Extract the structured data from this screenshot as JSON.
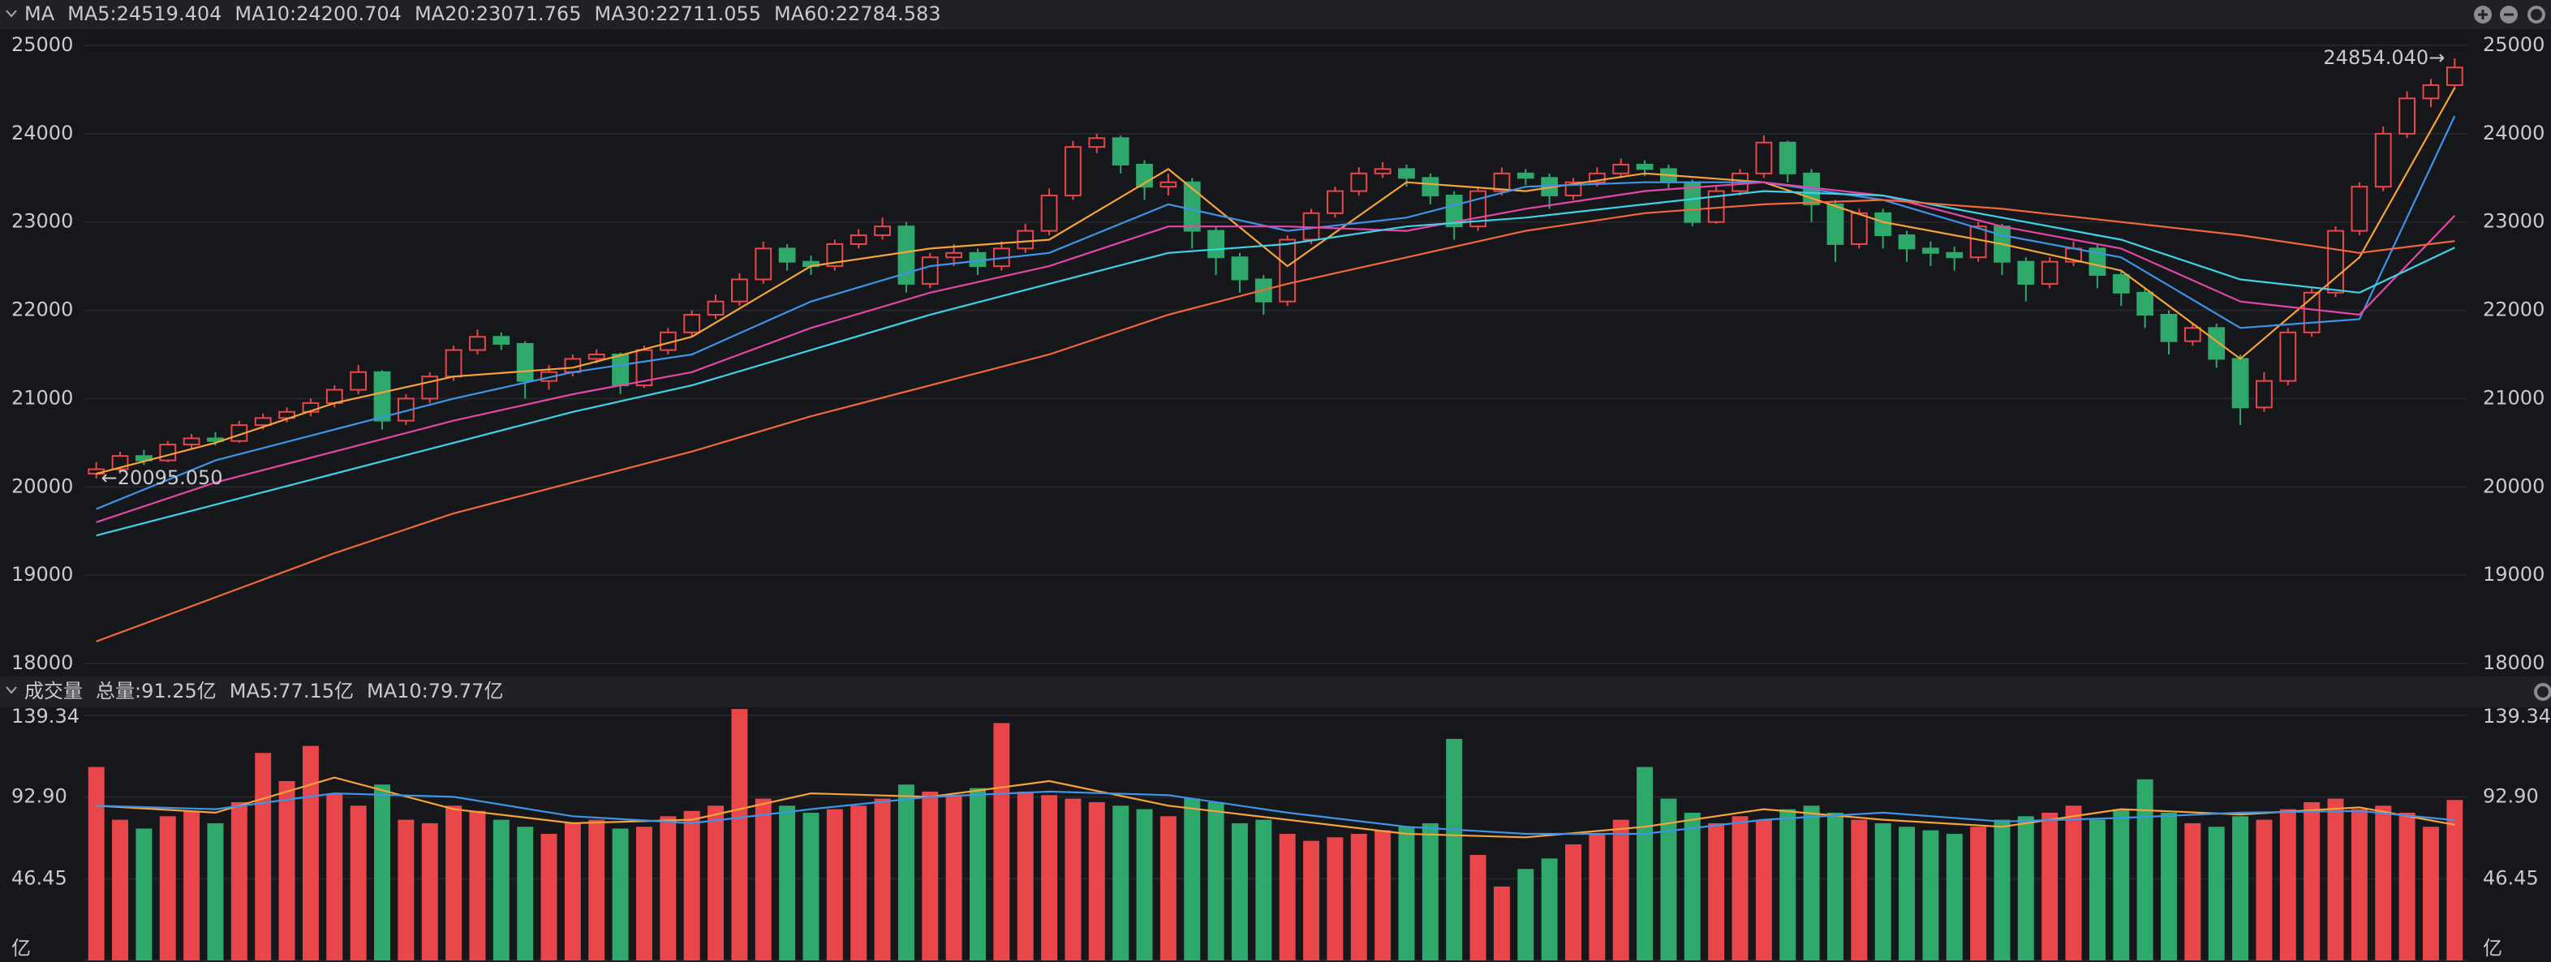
{
  "chart_data": [
    {
      "type": "candlestick",
      "title": "MA",
      "up_color": "#e8464a",
      "down_color": "#2ea86b",
      "open": [
        20150,
        20200,
        20350,
        20300,
        20480,
        20550,
        20520,
        20700,
        20780,
        20850,
        20950,
        21100,
        21300,
        20750,
        21000,
        21250,
        21550,
        21700,
        21620,
        21200,
        21300,
        21450,
        21500,
        21150,
        21550,
        21750,
        21950,
        22100,
        22350,
        22700,
        22550,
        22500,
        22750,
        22850,
        22950,
        22300,
        22600,
        22650,
        22500,
        22700,
        22900,
        23300,
        23850,
        23950,
        23650,
        23400,
        23450,
        22900,
        22600,
        22350,
        22100,
        22800,
        23100,
        23350,
        23550,
        23600,
        23500,
        23300,
        22950,
        23350,
        23550,
        23500,
        23300,
        23450,
        23550,
        23650,
        23600,
        23450,
        23000,
        23350,
        23550,
        23900,
        23550,
        23200,
        22750,
        23100,
        22850,
        22700,
        22650,
        22600,
        22950,
        22550,
        22300,
        22550,
        22700,
        22400,
        22200,
        21950,
        21650,
        21800,
        21450,
        20900,
        21200,
        21750,
        22200,
        22900,
        23400,
        24000,
        24400,
        24550
      ],
      "high": [
        20280,
        20400,
        20420,
        20520,
        20600,
        20620,
        20750,
        20830,
        20900,
        21000,
        21150,
        21380,
        21320,
        21050,
        21300,
        21600,
        21780,
        21750,
        21650,
        21380,
        21500,
        21560,
        21520,
        21600,
        21800,
        22000,
        22180,
        22420,
        22780,
        22750,
        22620,
        22800,
        22920,
        23050,
        23000,
        22650,
        22750,
        22700,
        22780,
        22980,
        23380,
        23920,
        24000,
        23980,
        23700,
        23550,
        23500,
        22950,
        22650,
        22400,
        22850,
        23150,
        23400,
        23620,
        23680,
        23650,
        23550,
        23350,
        23400,
        23620,
        23600,
        23550,
        23500,
        23620,
        23720,
        23700,
        23650,
        23480,
        23400,
        23600,
        23980,
        23920,
        23600,
        23250,
        23150,
        23150,
        22900,
        22780,
        22720,
        23000,
        22980,
        22600,
        22600,
        22780,
        22750,
        22450,
        22250,
        22000,
        21850,
        21850,
        21500,
        21300,
        21800,
        22250,
        22950,
        23450,
        24080,
        24480,
        24620,
        24854.04
      ],
      "low": [
        20095.05,
        20150,
        20250,
        20280,
        20430,
        20470,
        20500,
        20650,
        20730,
        20800,
        20900,
        21050,
        20650,
        20700,
        20950,
        21200,
        21500,
        21550,
        21000,
        21100,
        21250,
        21400,
        21050,
        21120,
        21500,
        21700,
        21900,
        22050,
        22300,
        22450,
        22400,
        22450,
        22700,
        22800,
        22200,
        22250,
        22500,
        22400,
        22450,
        22650,
        22850,
        23250,
        23780,
        23550,
        23250,
        23300,
        22700,
        22400,
        22200,
        21950,
        22050,
        22750,
        23050,
        23300,
        23500,
        23400,
        23200,
        22800,
        22900,
        23300,
        23420,
        23150,
        23250,
        23400,
        23500,
        23520,
        23380,
        22950,
        22980,
        23300,
        23500,
        23450,
        23000,
        22550,
        22700,
        22700,
        22550,
        22500,
        22450,
        22550,
        22400,
        22100,
        22250,
        22500,
        22250,
        22050,
        21800,
        21500,
        21600,
        21350,
        20700,
        20850,
        21150,
        21700,
        22150,
        22850,
        23350,
        23950,
        24300,
        24500
      ],
      "close": [
        20200,
        20350,
        20300,
        20480,
        20550,
        20520,
        20700,
        20780,
        20850,
        20950,
        21100,
        21300,
        20750,
        21000,
        21250,
        21550,
        21700,
        21620,
        21200,
        21300,
        21450,
        21500,
        21150,
        21550,
        21750,
        21950,
        22100,
        22350,
        22700,
        22550,
        22500,
        22750,
        22850,
        22950,
        22300,
        22600,
        22650,
        22500,
        22700,
        22900,
        23300,
        23850,
        23950,
        23650,
        23400,
        23450,
        22900,
        22600,
        22350,
        22100,
        22800,
        23100,
        23350,
        23550,
        23600,
        23500,
        23300,
        22950,
        23350,
        23550,
        23500,
        23300,
        23450,
        23550,
        23650,
        23600,
        23450,
        23000,
        23350,
        23550,
        23900,
        23550,
        23200,
        22750,
        23100,
        22850,
        22700,
        22650,
        22600,
        22950,
        22550,
        22300,
        22550,
        22700,
        22400,
        22200,
        21950,
        21650,
        21800,
        21450,
        20900,
        21200,
        21750,
        22200,
        22900,
        23400,
        24000,
        24400,
        24550,
        24750
      ],
      "high_label": "24854.040→",
      "low_label": "←20095.050",
      "series": [
        {
          "name": "MA5:24519.404",
          "color": "#f5a33a",
          "x": [
            0,
            5,
            10,
            15,
            20,
            25,
            30,
            35,
            40,
            45,
            50,
            55,
            60,
            65,
            70,
            75,
            80,
            85,
            90,
            95,
            99
          ],
          "values": [
            20150,
            20500,
            20950,
            21250,
            21350,
            21700,
            22500,
            22700,
            22800,
            23600,
            22500,
            23450,
            23350,
            23550,
            23450,
            23000,
            22750,
            22450,
            21450,
            22600,
            24519.404
          ]
        },
        {
          "name": "MA10:24200.704",
          "color": "#3d94e8",
          "x": [
            0,
            5,
            10,
            15,
            20,
            25,
            30,
            35,
            40,
            45,
            50,
            55,
            60,
            65,
            70,
            75,
            80,
            85,
            90,
            95,
            99
          ],
          "values": [
            19750,
            20300,
            20650,
            21000,
            21300,
            21500,
            22100,
            22500,
            22650,
            23200,
            22900,
            23050,
            23400,
            23450,
            23450,
            23250,
            22850,
            22600,
            21800,
            21900,
            24200.704
          ]
        },
        {
          "name": "MA20:23071.765",
          "color": "#e446a8",
          "x": [
            0,
            5,
            10,
            15,
            20,
            25,
            30,
            35,
            40,
            45,
            50,
            55,
            60,
            65,
            70,
            75,
            80,
            85,
            90,
            95,
            99
          ],
          "values": [
            19600,
            20050,
            20400,
            20750,
            21050,
            21300,
            21800,
            22200,
            22500,
            22950,
            22950,
            22900,
            23150,
            23350,
            23450,
            23300,
            22950,
            22700,
            22100,
            21950,
            23071.765
          ]
        },
        {
          "name": "MA30:22711.055",
          "color": "#3fd2e6",
          "x": [
            0,
            5,
            10,
            15,
            20,
            25,
            30,
            35,
            40,
            45,
            50,
            55,
            60,
            65,
            70,
            75,
            80,
            85,
            90,
            95,
            99
          ],
          "values": [
            19450,
            19800,
            20150,
            20500,
            20850,
            21150,
            21550,
            21950,
            22300,
            22650,
            22750,
            22950,
            23050,
            23200,
            23350,
            23300,
            23050,
            22800,
            22350,
            22200,
            22711.055
          ]
        },
        {
          "name": "MA60:22784.583",
          "color": "#f2683a",
          "x": [
            0,
            5,
            10,
            15,
            20,
            25,
            30,
            35,
            40,
            45,
            50,
            55,
            60,
            65,
            70,
            75,
            80,
            85,
            90,
            95,
            99
          ],
          "values": [
            18250,
            18750,
            19250,
            19700,
            20050,
            20400,
            20800,
            21150,
            21500,
            21950,
            22300,
            22600,
            22900,
            23100,
            23200,
            23250,
            23150,
            23000,
            22850,
            22650,
            22784.583
          ]
        }
      ],
      "ylim": [
        18000,
        25000
      ],
      "yticks": [
        18000,
        19000,
        20000,
        21000,
        22000,
        23000,
        24000,
        25000
      ],
      "grid": true
    },
    {
      "type": "bar",
      "title": "成交量",
      "total_label": "总量:91.25亿",
      "values": [
        110,
        80,
        75,
        82,
        85,
        78,
        90,
        118,
        102,
        122,
        95,
        88,
        100,
        80,
        78,
        88,
        85,
        80,
        76,
        72,
        78,
        80,
        75,
        76,
        82,
        85,
        88,
        143,
        92,
        88,
        84,
        86,
        88,
        92,
        100,
        96,
        94,
        98,
        135,
        96,
        94,
        92,
        90,
        88,
        86,
        82,
        92,
        90,
        78,
        80,
        72,
        68,
        70,
        72,
        74,
        76,
        78,
        126,
        60,
        42,
        52,
        58,
        66,
        72,
        80,
        110,
        92,
        84,
        78,
        82,
        80,
        86,
        88,
        84,
        80,
        78,
        76,
        74,
        72,
        76,
        80,
        82,
        84,
        88,
        80,
        86,
        103,
        84,
        78,
        76,
        82,
        80,
        86,
        90,
        92,
        86,
        88,
        84,
        76,
        91.25
      ],
      "series": [
        {
          "name": "MA5:77.15亿",
          "color": "#f5a33a",
          "x": [
            0,
            5,
            10,
            15,
            20,
            25,
            30,
            35,
            40,
            45,
            50,
            55,
            60,
            65,
            70,
            75,
            80,
            85,
            90,
            95,
            99
          ],
          "values": [
            88,
            84,
            104,
            86,
            78,
            80,
            95,
            93,
            102,
            88,
            80,
            72,
            70,
            76,
            86,
            80,
            76,
            86,
            83,
            87,
            77.15
          ]
        },
        {
          "name": "MA10:79.77亿",
          "color": "#3d94e8",
          "x": [
            0,
            5,
            10,
            15,
            20,
            25,
            30,
            35,
            40,
            45,
            50,
            55,
            60,
            65,
            70,
            75,
            80,
            85,
            90,
            95,
            99
          ],
          "values": [
            88,
            86,
            95,
            93,
            82,
            78,
            86,
            93,
            96,
            94,
            84,
            76,
            72,
            72,
            80,
            84,
            79,
            81,
            84,
            85,
            79.77
          ]
        }
      ],
      "ylim": [
        0,
        139.34
      ],
      "yticks": [
        {
          "value": 0,
          "label": "亿"
        },
        46.45,
        {
          "value": 92.9,
          "label": "92.90"
        },
        {
          "value": 139.34,
          "label": "139.34"
        }
      ],
      "grid": true
    }
  ]
}
